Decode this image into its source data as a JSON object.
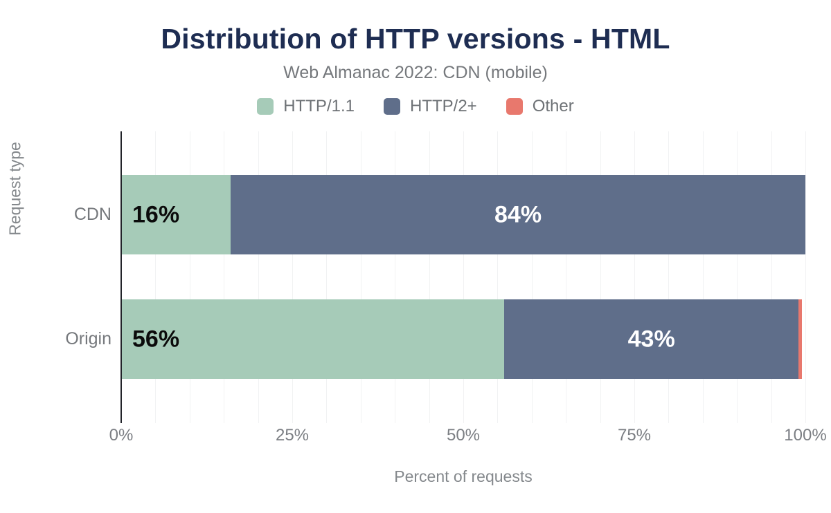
{
  "chart_data": {
    "type": "bar",
    "orientation": "horizontal",
    "stacked": true,
    "title": "Distribution of HTTP versions - HTML",
    "subtitle": "Web Almanac 2022: CDN (mobile)",
    "xlabel": "Percent of requests",
    "ylabel": "Request type",
    "xlim": [
      0,
      100
    ],
    "xtick_labels": [
      "0%",
      "25%",
      "50%",
      "75%",
      "100%"
    ],
    "xtick_values": [
      0,
      25,
      50,
      75,
      100
    ],
    "minor_grid_step": 5,
    "grid": true,
    "legend_position": "top",
    "categories": [
      "CDN",
      "Origin"
    ],
    "series": [
      {
        "name": "HTTP/1.1",
        "color": "#a6cbb8",
        "values": [
          16,
          56
        ],
        "labels": [
          "16%",
          "56%"
        ],
        "label_color": "#0b0b0b",
        "label_align": "left"
      },
      {
        "name": "HTTP/2+",
        "color": "#5f6e8a",
        "values": [
          84,
          43
        ],
        "labels": [
          "84%",
          "43%"
        ],
        "label_color": "#ffffff",
        "label_align": "center"
      },
      {
        "name": "Other",
        "color": "#e8786d",
        "values": [
          0,
          0.5
        ],
        "labels": [
          "",
          ""
        ],
        "label_color": "#ffffff",
        "label_align": "center"
      }
    ],
    "colors": {
      "title": "#1e2d52",
      "subtitle_text": "#75787c",
      "axis_line": "#212329",
      "gridline": "#f1f2f3",
      "tick_text": "#7b7e83"
    }
  }
}
